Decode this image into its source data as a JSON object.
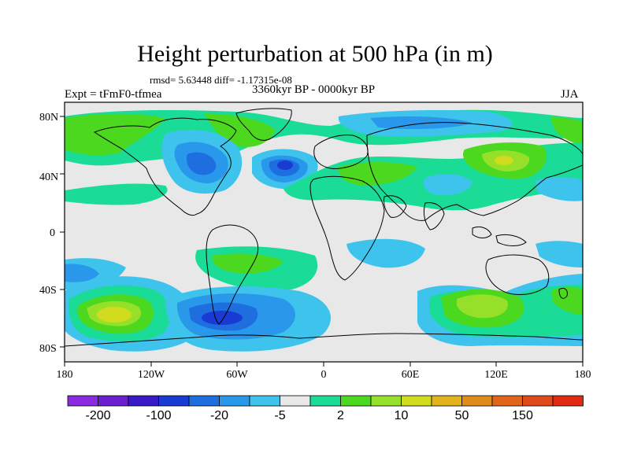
{
  "header": {
    "title": "Height perturbation at 500 hPa (in m)",
    "stats": "rmsd= 5.63448 diff= -1.17315e-08",
    "expt": "Expt = tFmF0-tfmea",
    "period": "3360kyr BP - 0000kyr BP",
    "season": "JJA"
  },
  "axes": {
    "lat_ticks": [
      "80N",
      "40N",
      "0",
      "40S",
      "80S"
    ],
    "lon_ticks": [
      "180",
      "120W",
      "60W",
      "0",
      "60E",
      "120E",
      "180"
    ]
  },
  "colorbar": {
    "colors": [
      "#8a2be2",
      "#6a1fd0",
      "#3a1ac8",
      "#1a3ad4",
      "#1e6ee0",
      "#2a98ea",
      "#3ec4ec",
      "#e8e8e8",
      "#1adc96",
      "#4cd81e",
      "#96e02a",
      "#d2dc1e",
      "#e0b41a",
      "#e08c1a",
      "#e0641a",
      "#e04a1a",
      "#e02a12"
    ],
    "labels": [
      "-200",
      "-100",
      "-20",
      "-5",
      "2",
      "10",
      "50",
      "150"
    ]
  },
  "map_colors": {
    "background": "#e8e8e8",
    "light_blue": "#3ec4ec",
    "mid_blue": "#2a98ea",
    "blue": "#1e6ee0",
    "dark_blue": "#1a3ad4",
    "teal": "#1adc96",
    "green": "#4cd81e",
    "yellow_green": "#96e02a",
    "yellow": "#d2dc1e"
  }
}
